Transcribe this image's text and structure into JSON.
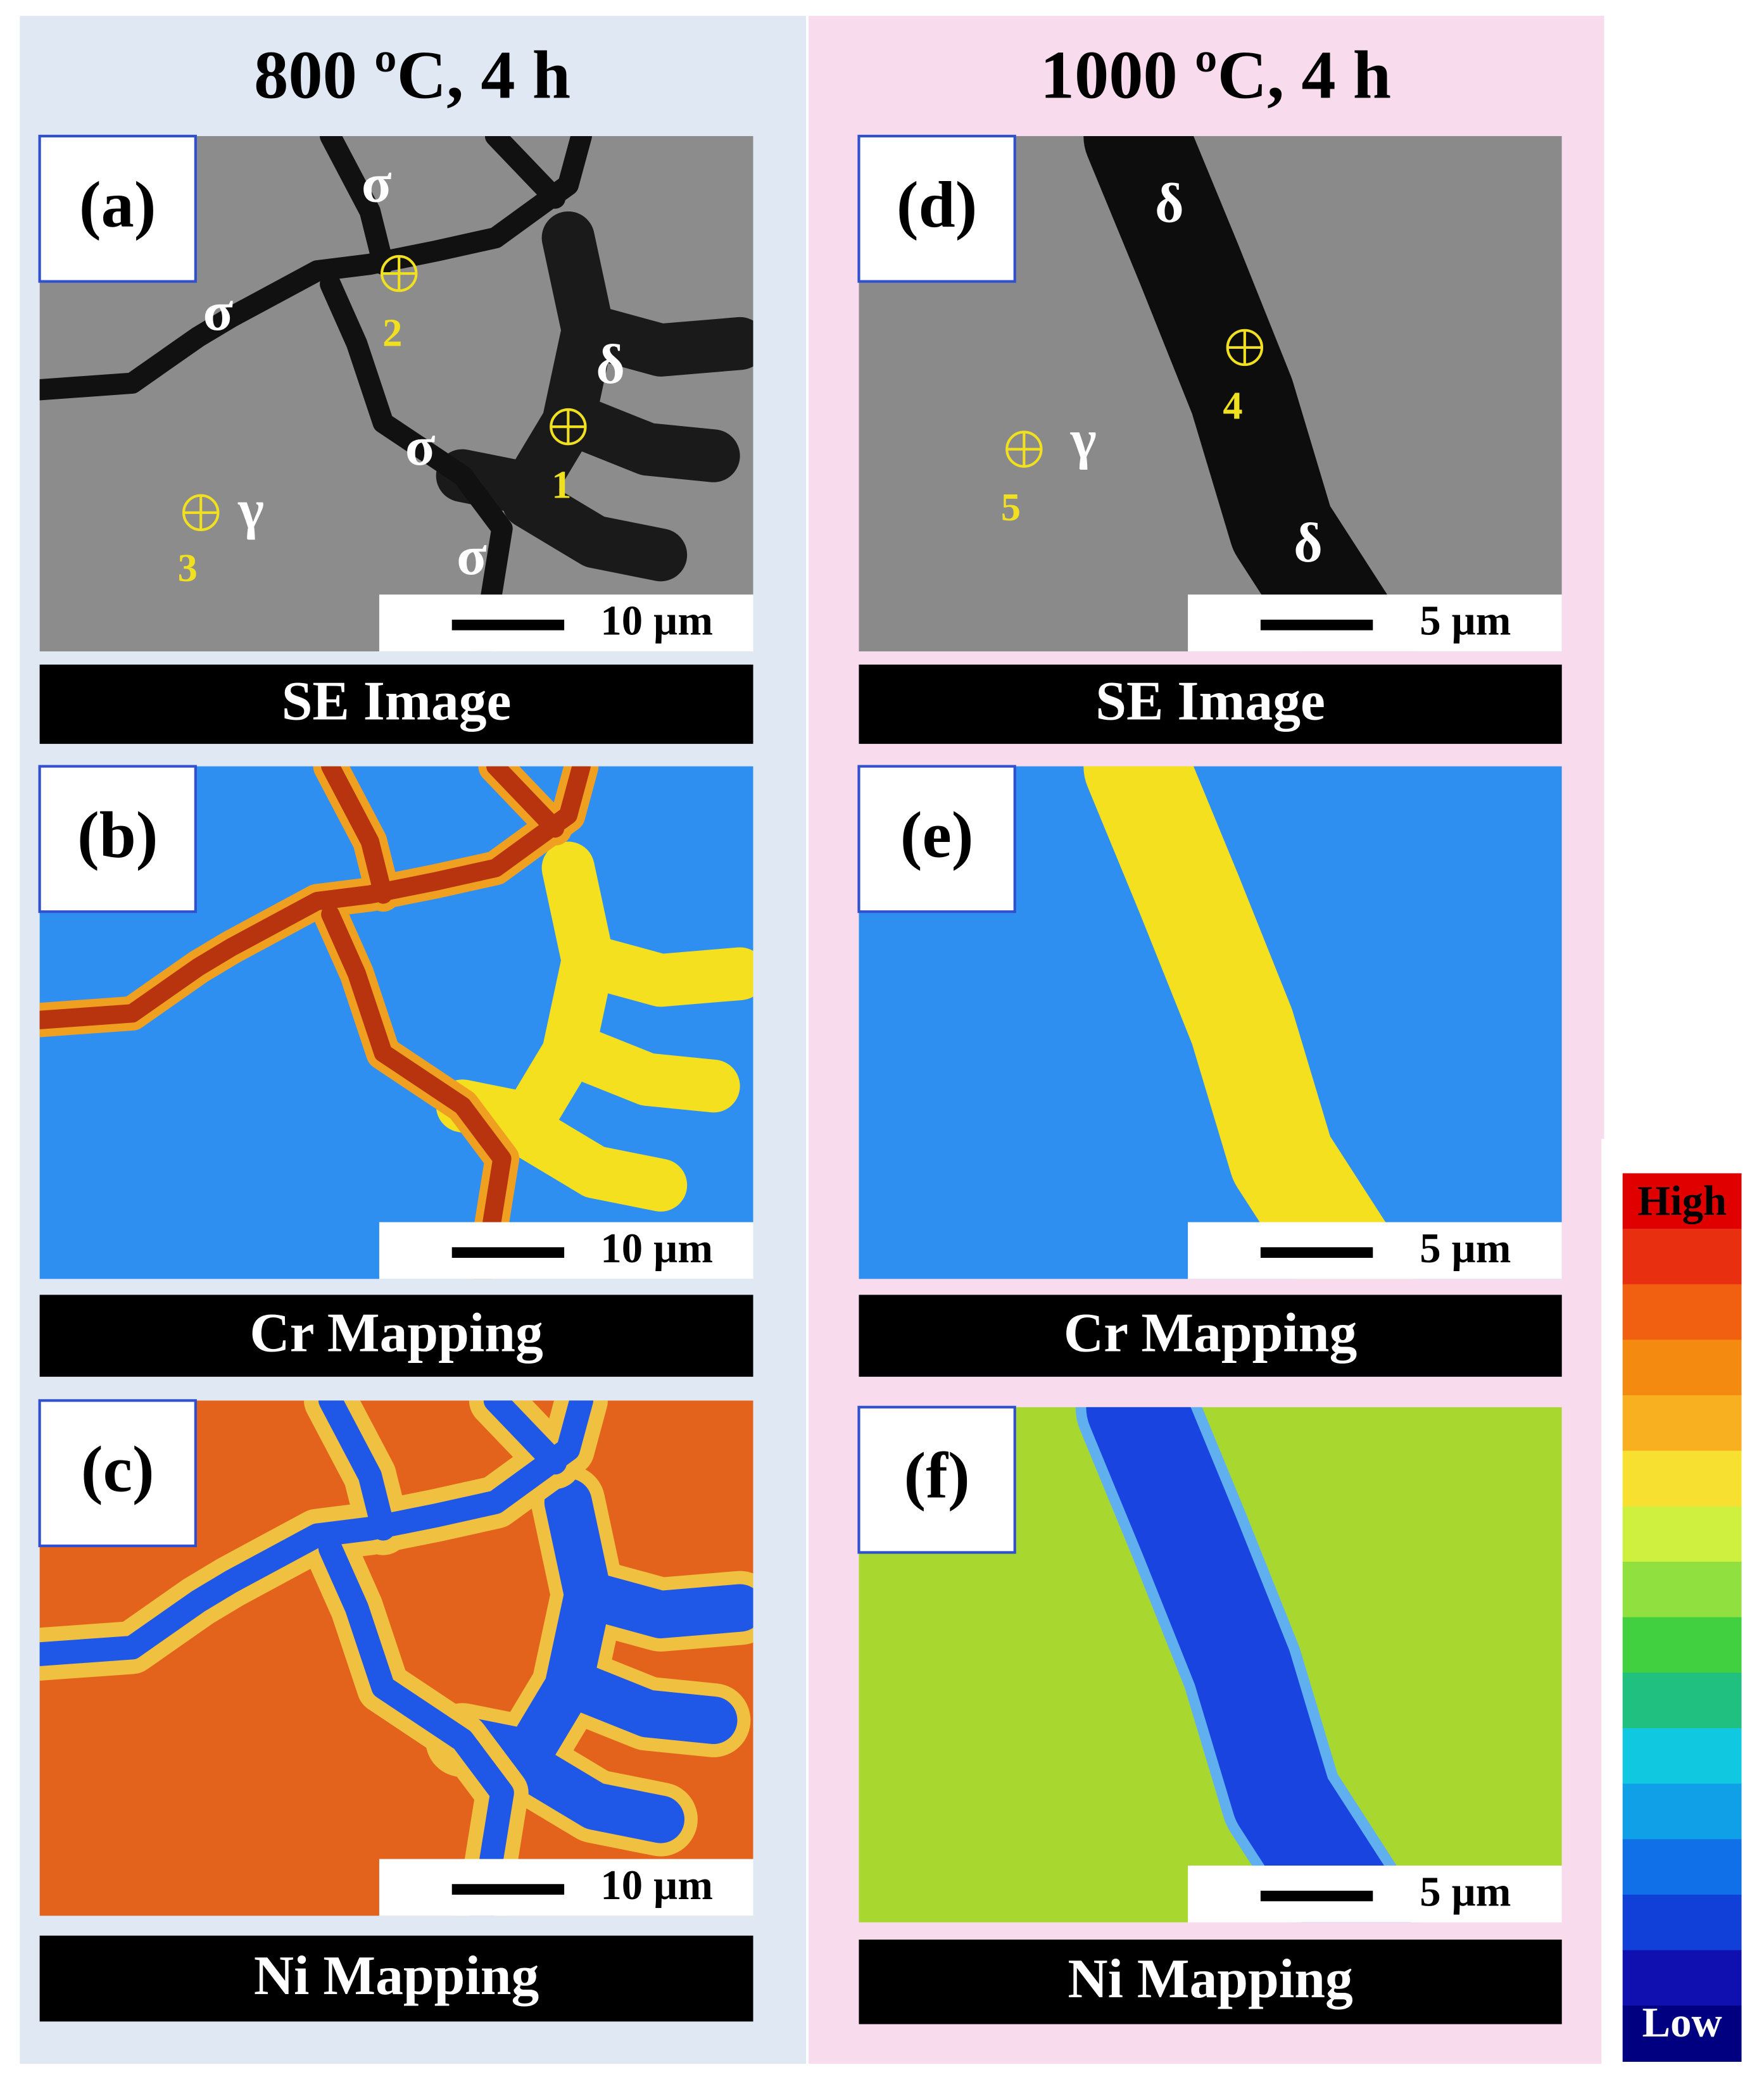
{
  "columns": [
    {
      "title": "800 ºC, 4 h",
      "panels": [
        {
          "label": "(a)",
          "scale_bar": "10 µm",
          "caption": "SE Image",
          "annotations": [
            "σ",
            "σ",
            "σ",
            "σ",
            "δ",
            "γ",
            "1",
            "2",
            "3"
          ]
        },
        {
          "label": "(b)",
          "scale_bar": "10 µm",
          "caption": "Cr Mapping"
        },
        {
          "label": "(c)",
          "scale_bar": "10 µm",
          "caption": "Ni Mapping"
        }
      ]
    },
    {
      "title": "1000 ºC, 4 h",
      "panels": [
        {
          "label": "(d)",
          "scale_bar": "5 µm",
          "caption": "SE Image",
          "annotations": [
            "δ",
            "δ",
            "γ",
            "4",
            "5"
          ]
        },
        {
          "label": "(e)",
          "scale_bar": "5 µm",
          "caption": "Cr Mapping"
        },
        {
          "label": "(f)",
          "scale_bar": "5 µm",
          "caption": "Ni Mapping"
        }
      ]
    }
  ],
  "colorbar": {
    "high": "High",
    "low": "Low"
  }
}
